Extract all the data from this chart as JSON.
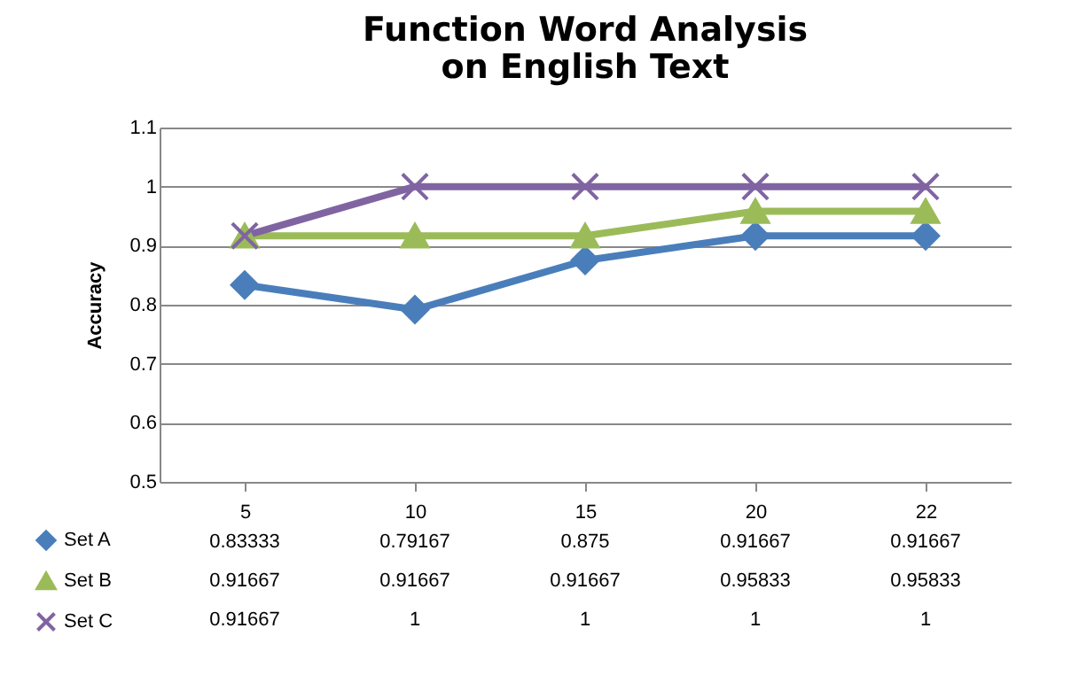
{
  "chart_data": {
    "type": "line",
    "title": "Function Word Analysis\non English Text",
    "ylabel": "Accuracy",
    "categories": [
      "5",
      "10",
      "15",
      "20",
      "22"
    ],
    "series": [
      {
        "name": "Set A",
        "color": "#4a7ebb",
        "marker": "diamond",
        "values": [
          0.83333,
          0.79167,
          0.875,
          0.91667,
          0.91667
        ]
      },
      {
        "name": "Set B",
        "color": "#9bbb59",
        "marker": "triangle",
        "values": [
          0.91667,
          0.91667,
          0.91667,
          0.95833,
          0.95833
        ]
      },
      {
        "name": "Set C",
        "color": "#8064a2",
        "marker": "cross",
        "values": [
          0.91667,
          1,
          1,
          1,
          1
        ]
      }
    ],
    "ylim": [
      0.5,
      1.1
    ],
    "yticks": [
      0.5,
      0.6,
      0.7,
      0.8,
      0.9,
      1,
      1.1
    ],
    "grid": "y",
    "legend": "bottom left",
    "data_labels": true
  }
}
